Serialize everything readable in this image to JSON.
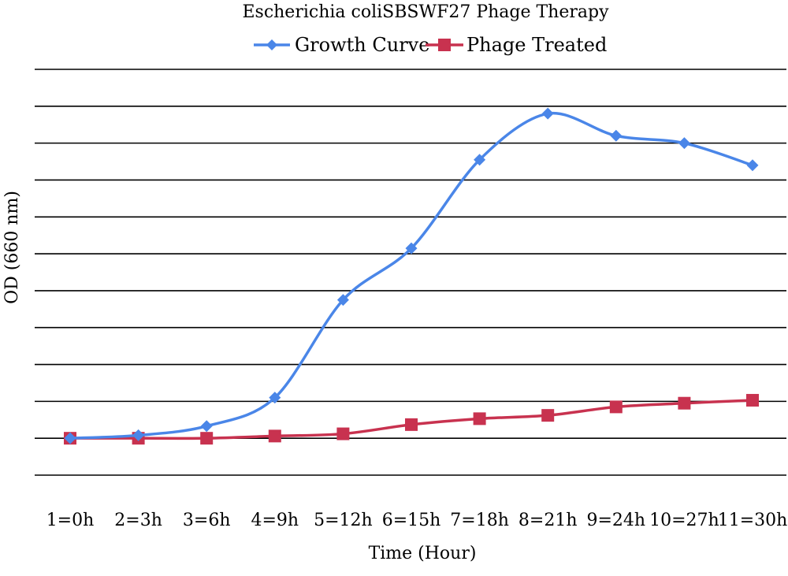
{
  "chart_data": {
    "type": "line",
    "title": "Escherichia coliSBSWF27 Phage Therapy",
    "xlabel": "Time (Hour)",
    "ylabel": "OD (660 nm)",
    "categories": [
      "1=0h",
      "2=3h",
      "3=6h",
      "4=9h",
      "5=12h",
      "6=15h",
      "7=18h",
      "8=21h",
      "9=24h",
      "10=27h",
      "11=30h"
    ],
    "ylim": [
      -1,
      10
    ],
    "grid": true,
    "legend_position": "top",
    "series": [
      {
        "name": "Growth Curve",
        "color": "#4a86e8",
        "marker": "diamond",
        "values": [
          0,
          0.08,
          0.33,
          1.1,
          3.75,
          5.15,
          7.55,
          8.8,
          8.2,
          8.0,
          7.4
        ]
      },
      {
        "name": "Phage Treated",
        "color": "#c8324f",
        "marker": "square",
        "values": [
          0,
          0,
          0,
          0.06,
          0.12,
          0.37,
          0.53,
          0.62,
          0.85,
          0.95,
          1.03
        ]
      }
    ]
  }
}
